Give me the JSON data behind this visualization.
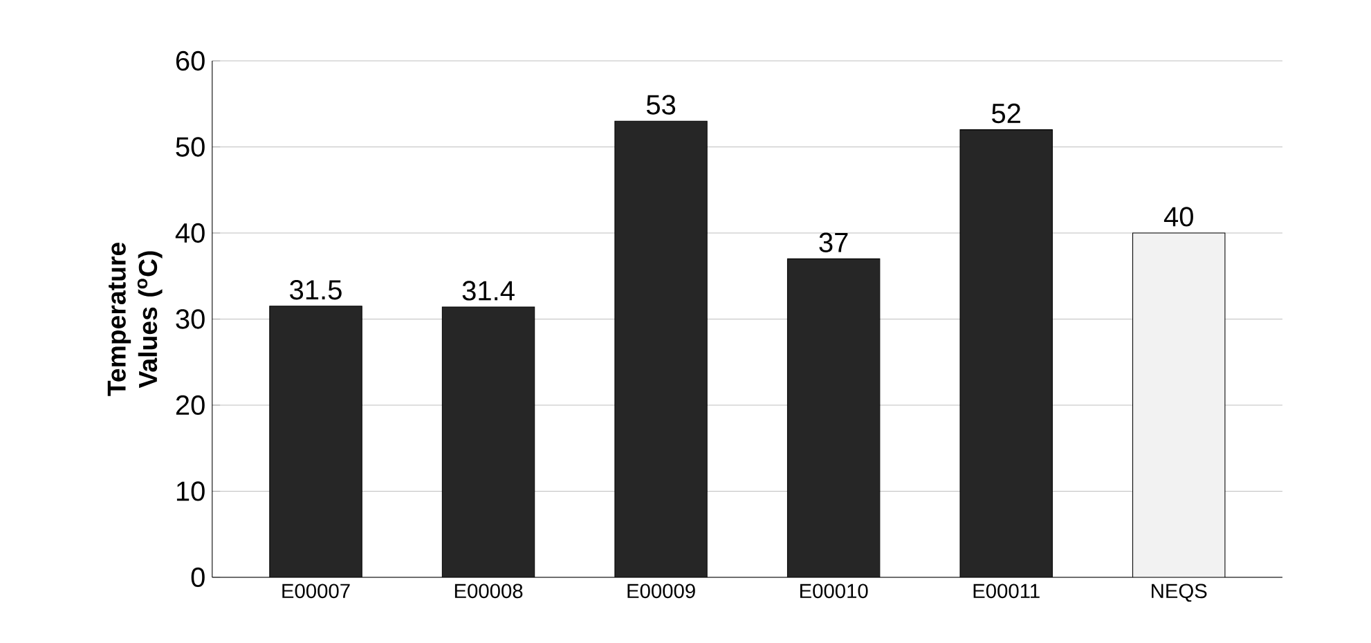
{
  "chart_data": {
    "type": "bar",
    "ylabel": "Temperature Values ($^{o}$C)",
    "categories": [
      "E00007",
      "E00008",
      "E00009",
      "E00010",
      "E00011",
      "NEQS"
    ],
    "values": [
      31.5,
      31.4,
      53,
      37,
      52,
      40
    ],
    "colors": [
      "#262626",
      "#262626",
      "#262626",
      "#262626",
      "#262626",
      "#f2f2f2"
    ],
    "ylim": [
      0,
      60
    ],
    "yticks": [
      0,
      10,
      20,
      30,
      40,
      50,
      60
    ],
    "grid": "y",
    "data_labels": true
  }
}
